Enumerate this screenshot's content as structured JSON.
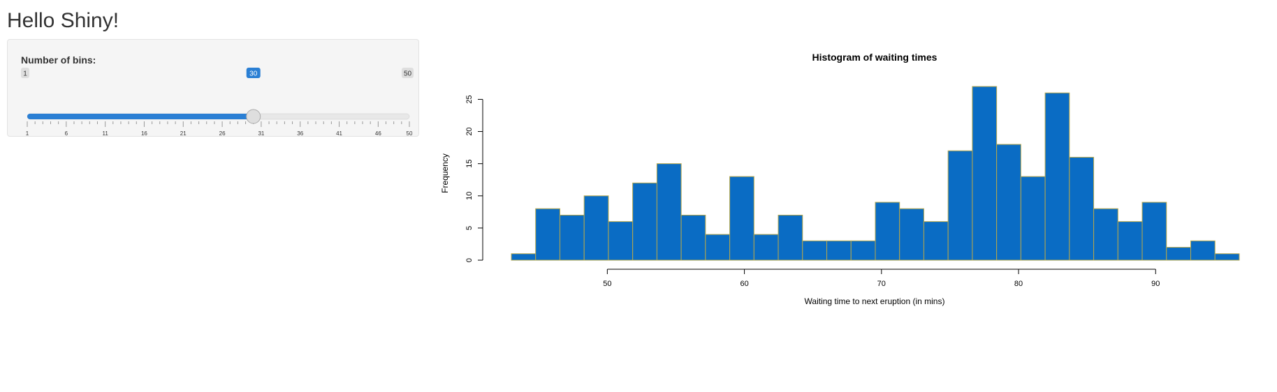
{
  "page": {
    "title": "Hello Shiny!"
  },
  "sidebar": {
    "slider": {
      "label": "Number of bins:",
      "min": 1,
      "max": 50,
      "value": 30,
      "min_label": "1",
      "max_label": "50",
      "value_label": "30",
      "tick_labels": [
        "1",
        "6",
        "11",
        "16",
        "21",
        "26",
        "31",
        "36",
        "41",
        "46",
        "50"
      ],
      "colors": {
        "accent": "#2a7fd4",
        "track": "#e8e8e8",
        "handle": "#dedede",
        "edge_label_bg": "#dedede"
      }
    }
  },
  "chart_data": {
    "type": "bar",
    "title": "Histogram of waiting times",
    "xlabel": "Waiting time to next eruption (in mins)",
    "ylabel": "Frequency",
    "bin_start": 43,
    "bin_width": 1.77,
    "values": [
      1,
      8,
      7,
      10,
      6,
      12,
      15,
      7,
      4,
      13,
      4,
      7,
      3,
      3,
      3,
      9,
      8,
      6,
      17,
      27,
      18,
      13,
      26,
      16,
      8,
      6,
      9,
      2,
      3,
      1
    ],
    "x_ticks": [
      50,
      60,
      70,
      80,
      90
    ],
    "y_ticks": [
      0,
      5,
      10,
      15,
      20,
      25
    ],
    "xlim": [
      43,
      96
    ],
    "ylim": [
      0,
      27
    ],
    "bar_fill": "#0a6cc4",
    "bar_border": "#b8a84a"
  }
}
